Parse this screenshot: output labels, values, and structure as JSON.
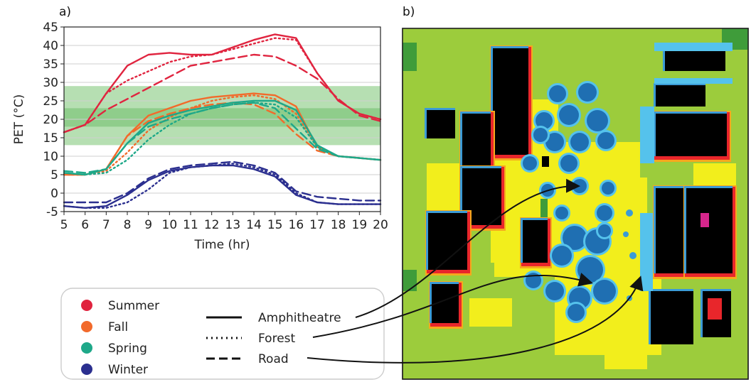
{
  "panel_a_label": "a)",
  "panel_b_label": "b)",
  "legend": {
    "seasons": [
      {
        "name": "Summer",
        "color": "#e0243f"
      },
      {
        "name": "Fall",
        "color": "#f26a2b"
      },
      {
        "name": "Spring",
        "color": "#1ea889"
      },
      {
        "name": "Winter",
        "color": "#2b2f8f"
      }
    ],
    "sites": [
      {
        "name": "Amphitheatre",
        "style": "solid"
      },
      {
        "name": "Forest",
        "style": "dotted"
      },
      {
        "name": "Road",
        "style": "dashed"
      }
    ]
  },
  "chart_data": [
    {
      "type": "line",
      "title": "",
      "xlabel": "Time (hr)",
      "ylabel": "PET (°C)",
      "xlim": [
        5,
        20
      ],
      "ylim": [
        -5,
        45
      ],
      "xticks": [
        "5",
        "6",
        "7",
        "8",
        "9",
        "10",
        "11",
        "12",
        "13",
        "14",
        "15",
        "16",
        "17",
        "18",
        "19",
        "20"
      ],
      "yticks": [
        "-5",
        "0",
        "5",
        "10",
        "15",
        "20",
        "25",
        "30",
        "35",
        "40",
        "45"
      ],
      "grid": "horizontal",
      "comfort_bands": [
        [
          13,
          29
        ],
        [
          18,
          23
        ]
      ],
      "x": [
        5,
        6,
        7,
        8,
        9,
        10,
        11,
        12,
        13,
        14,
        15,
        16,
        17,
        18,
        19,
        20
      ],
      "series": [
        {
          "season": "Summer",
          "site": "Amphitheatre",
          "values": [
            16.5,
            18.5,
            27,
            34.5,
            37.5,
            38,
            37.5,
            37.5,
            39.5,
            41.5,
            43,
            42,
            32.5,
            25,
            21.5,
            20
          ]
        },
        {
          "season": "Summer",
          "site": "Forest",
          "values": [
            16.5,
            18.5,
            27,
            30.5,
            33,
            35.5,
            37,
            37.5,
            39,
            40.5,
            42,
            41.5,
            32.5,
            25,
            21.5,
            20
          ]
        },
        {
          "season": "Summer",
          "site": "Road",
          "values": [
            16.5,
            18.5,
            22.5,
            25.5,
            28.5,
            31.5,
            34.5,
            35.5,
            36.5,
            37.5,
            37,
            34.5,
            31,
            25.5,
            21,
            19.5
          ]
        },
        {
          "season": "Fall",
          "site": "Amphitheatre",
          "values": [
            5,
            5,
            6.5,
            15.5,
            21,
            23,
            25,
            26,
            26.5,
            27,
            26.5,
            23.5,
            12.5,
            10,
            9.5,
            9
          ]
        },
        {
          "season": "Fall",
          "site": "Forest",
          "values": [
            5,
            5,
            6,
            11,
            17,
            20.5,
            23,
            25,
            26,
            26.5,
            25.5,
            21.5,
            12.5,
            10,
            9.5,
            9
          ]
        },
        {
          "season": "Fall",
          "site": "Road",
          "values": [
            5,
            5,
            6.5,
            15.5,
            19.5,
            21.5,
            23,
            24,
            24.5,
            24,
            21.5,
            16,
            11.5,
            10,
            9.5,
            9
          ]
        },
        {
          "season": "Spring",
          "site": "Amphitheatre",
          "values": [
            5.5,
            5,
            6.5,
            13.5,
            19,
            21,
            22.5,
            23.5,
            24.5,
            25,
            25,
            22.5,
            13,
            10,
            9.5,
            9
          ]
        },
        {
          "season": "Spring",
          "site": "Forest",
          "values": [
            5.5,
            5,
            5.5,
            9,
            14.5,
            18.5,
            21.5,
            23,
            24,
            24.5,
            24,
            20.5,
            12.5,
            10,
            9.5,
            9
          ]
        },
        {
          "season": "Spring",
          "site": "Road",
          "values": [
            6,
            5.5,
            6.5,
            13.5,
            18,
            20,
            21.5,
            23,
            24,
            24.5,
            23,
            17.5,
            12,
            10,
            9.5,
            9
          ]
        },
        {
          "season": "Winter",
          "site": "Amphitheatre",
          "values": [
            -3.5,
            -4,
            -3.5,
            -0.5,
            3.5,
            6,
            7,
            7.5,
            7.5,
            6.5,
            4.5,
            -0.5,
            -2.5,
            -3,
            -3,
            -3
          ]
        },
        {
          "season": "Winter",
          "site": "Forest",
          "values": [
            -3.5,
            -4,
            -4,
            -2.5,
            1,
            5.5,
            7,
            7.5,
            8,
            7,
            5,
            0,
            -2.5,
            -3,
            -3,
            -3
          ]
        },
        {
          "season": "Winter",
          "site": "Road",
          "values": [
            -2.5,
            -2.5,
            -2.5,
            0,
            4,
            6.5,
            7.5,
            8,
            8.5,
            7.5,
            5.5,
            0.5,
            -1,
            -1.5,
            -2,
            -2
          ]
        }
      ]
    },
    {
      "type": "heatmap",
      "title": "",
      "description_colors": {
        "building": "#000000",
        "cool_dark": "#1f6fb2",
        "cool": "#3b9bd6",
        "cool_light": "#55c2ec",
        "mild": "#9ccc3c",
        "warm": "#f2ee1c",
        "hot": "#f7a81d",
        "very_hot": "#e8262b",
        "extreme": "#d6268c",
        "vegetation_dark": "#3f9c3a"
      }
    }
  ]
}
